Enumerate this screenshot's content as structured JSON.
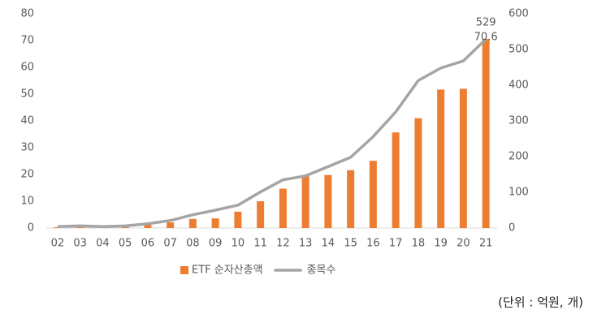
{
  "chart_data": {
    "type": "bar-line",
    "categories": [
      "02",
      "03",
      "04",
      "05",
      "06",
      "07",
      "08",
      "09",
      "10",
      "11",
      "12",
      "13",
      "14",
      "15",
      "16",
      "17",
      "18",
      "19",
      "20",
      "21"
    ],
    "series": [
      {
        "name": "ETF 순자산총액",
        "type": "bar",
        "color": "#ed7d31",
        "axis": "y",
        "values": [
          0.3,
          0.4,
          0.3,
          0.5,
          1.3,
          2.1,
          3.4,
          3.6,
          6.1,
          10,
          14.7,
          19.4,
          19.8,
          21.6,
          25.1,
          35.7,
          41,
          51.7,
          52,
          70.6
        ]
      },
      {
        "name": "종목수",
        "type": "line",
        "color": "#a5a5a5",
        "axis": "y2",
        "values": [
          4,
          6,
          4,
          6,
          12,
          21,
          37,
          50,
          64,
          101,
          135,
          146,
          172,
          198,
          256,
          325,
          413,
          448,
          468,
          529
        ]
      }
    ],
    "ylim": [
      0,
      80
    ],
    "yticks": [
      0,
      10,
      20,
      30,
      40,
      50,
      60,
      70,
      80
    ],
    "y2lim": [
      0,
      600
    ],
    "y2ticks": [
      0,
      100,
      200,
      300,
      400,
      500,
      600
    ],
    "note": "(단위 : 억원, 개)"
  }
}
